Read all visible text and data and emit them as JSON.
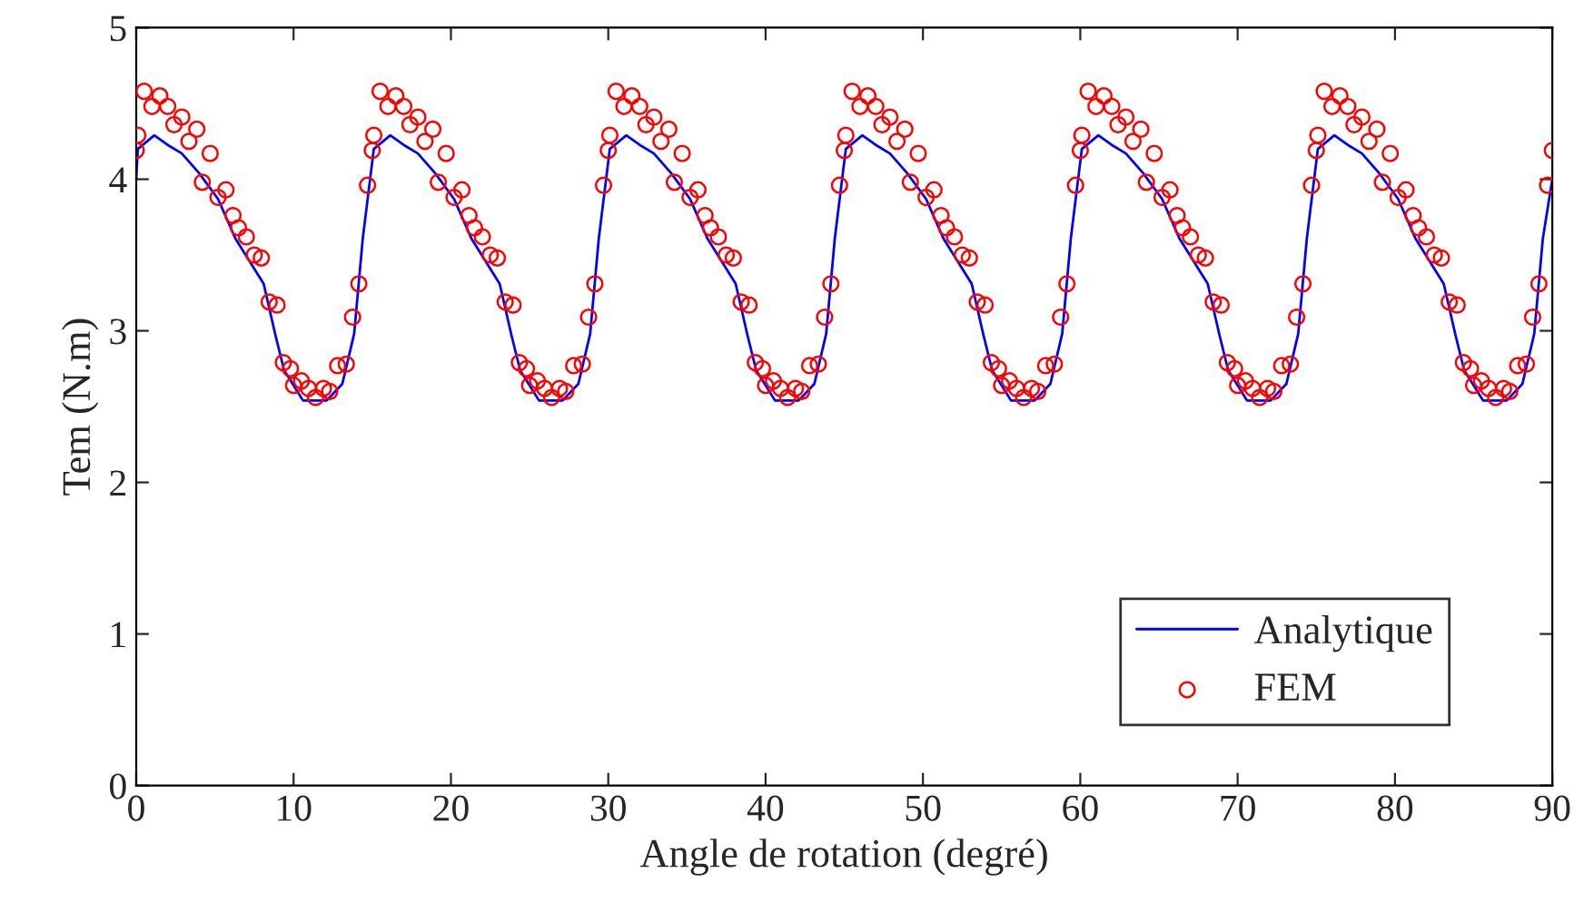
{
  "chart_data": {
    "type": "line",
    "xlabel": "Angle de rotation (degré)",
    "ylabel": "Tem (N.m)",
    "xlim": [
      0,
      90
    ],
    "xticks": [
      0,
      10,
      20,
      30,
      40,
      50,
      60,
      70,
      80,
      90
    ],
    "ylim": [
      0,
      5
    ],
    "yticks": [
      0,
      1,
      2,
      3,
      4,
      5
    ],
    "grid": false,
    "legend": "bottom right",
    "series": [
      {
        "name": "Analytique",
        "color": "#0000ff",
        "marker": "none",
        "line_style": "solid",
        "x": [
          0,
          0.1,
          1.15,
          2.1,
          2.9,
          4.0,
          5.2,
          6.3,
          8.1,
          8.85,
          9.4,
          10.6,
          12.1,
          13.1,
          13.85,
          14.4,
          15.1,
          16.15,
          17.1,
          17.9,
          19.0,
          20.2,
          21.3,
          23.1,
          23.85,
          24.4,
          25.6,
          27.1,
          28.1,
          28.85,
          29.4,
          30.1,
          31.15,
          32.1,
          32.9,
          34.0,
          35.2,
          36.3,
          38.1,
          38.85,
          39.4,
          40.6,
          42.1,
          43.1,
          43.85,
          44.4,
          45.1,
          46.15,
          47.1,
          47.9,
          49.0,
          50.2,
          51.3,
          53.1,
          53.85,
          54.4,
          55.6,
          57.1,
          58.1,
          58.85,
          59.4,
          60.1,
          61.15,
          62.1,
          62.9,
          64.0,
          65.2,
          66.3,
          68.1,
          68.85,
          69.4,
          70.6,
          72.1,
          73.1,
          73.85,
          74.4,
          75.1,
          76.15,
          77.1,
          77.9,
          79.0,
          80.2,
          81.3,
          83.1,
          83.85,
          84.4,
          85.6,
          87.1,
          88.1,
          88.85,
          89.4,
          90
        ],
        "values": [
          4.0,
          4.2,
          4.29,
          4.22,
          4.17,
          4.04,
          3.87,
          3.61,
          3.31,
          2.97,
          2.74,
          2.54,
          2.54,
          2.65,
          2.98,
          3.61,
          4.2,
          4.29,
          4.22,
          4.17,
          4.04,
          3.87,
          3.61,
          3.31,
          2.97,
          2.74,
          2.54,
          2.54,
          2.65,
          2.98,
          3.61,
          4.2,
          4.29,
          4.22,
          4.17,
          4.04,
          3.87,
          3.61,
          3.31,
          2.97,
          2.74,
          2.54,
          2.54,
          2.65,
          2.98,
          3.61,
          4.2,
          4.29,
          4.22,
          4.17,
          4.04,
          3.87,
          3.61,
          3.31,
          2.97,
          2.74,
          2.54,
          2.54,
          2.65,
          2.98,
          3.61,
          4.2,
          4.29,
          4.22,
          4.17,
          4.04,
          3.87,
          3.61,
          3.31,
          2.97,
          2.74,
          2.54,
          2.54,
          2.65,
          2.98,
          3.61,
          4.2,
          4.29,
          4.22,
          4.17,
          4.04,
          3.87,
          3.61,
          3.31,
          2.97,
          2.74,
          2.54,
          2.54,
          2.65,
          2.98,
          3.61,
          4.0
        ]
      },
      {
        "name": "FEM",
        "type": "scatter",
        "color": "#ff0000",
        "marker": "circle",
        "x": [
          0,
          0.1,
          0.5,
          1.0,
          1.5,
          2.0,
          2.4,
          2.9,
          3.35,
          3.85,
          4.2,
          4.7,
          5.2,
          5.7,
          6.15,
          6.5,
          7.0,
          7.5,
          7.95,
          8.45,
          8.95,
          9.35,
          9.8,
          10.0,
          10.5,
          10.95,
          11.4,
          11.9,
          12.3,
          12.8,
          13.35,
          13.75,
          14.15,
          14.7,
          15,
          15.1,
          15.5,
          16,
          16.5,
          17,
          17.4,
          17.9,
          18.35,
          18.85,
          19.2,
          19.7,
          20.2,
          20.7,
          21.15,
          21.5,
          22,
          22.5,
          22.95,
          23.45,
          23.95,
          24.35,
          24.8,
          25,
          25.5,
          25.95,
          26.4,
          26.9,
          27.3,
          27.8,
          28.35,
          28.75,
          29.15,
          29.7,
          30,
          30.1,
          30.5,
          31,
          31.5,
          32,
          32.4,
          32.9,
          33.35,
          33.85,
          34.2,
          34.7,
          35.2,
          35.7,
          36.15,
          36.5,
          37,
          37.5,
          37.95,
          38.45,
          38.95,
          39.35,
          39.8,
          40,
          40.5,
          40.95,
          41.4,
          41.9,
          42.3,
          42.8,
          43.35,
          43.75,
          44.15,
          44.7,
          45,
          45.1,
          45.5,
          46,
          46.5,
          47,
          47.4,
          47.9,
          48.35,
          48.85,
          49.2,
          49.7,
          50.2,
          50.7,
          51.15,
          51.5,
          52,
          52.5,
          52.95,
          53.45,
          53.95,
          54.35,
          54.8,
          55,
          55.5,
          55.95,
          56.4,
          56.9,
          57.3,
          57.8,
          58.35,
          58.75,
          59.15,
          59.7,
          60,
          60.1,
          60.5,
          61,
          61.5,
          62,
          62.4,
          62.9,
          63.35,
          63.85,
          64.2,
          64.7,
          65.2,
          65.7,
          66.15,
          66.5,
          67,
          67.5,
          67.95,
          68.45,
          68.95,
          69.35,
          69.8,
          70,
          70.5,
          70.95,
          71.4,
          71.9,
          72.3,
          72.8,
          73.35,
          73.75,
          74.15,
          74.7,
          75,
          75.1,
          75.5,
          76,
          76.5,
          77,
          77.4,
          77.9,
          78.35,
          78.85,
          79.2,
          79.7,
          80.2,
          80.7,
          81.15,
          81.5,
          82,
          82.5,
          82.95,
          83.45,
          83.95,
          84.35,
          84.8,
          85,
          85.5,
          85.95,
          86.4,
          86.9,
          87.3,
          87.8,
          88.35,
          88.75,
          89.15,
          89.7,
          90
        ],
        "values": [
          4.19,
          4.29,
          4.58,
          4.48,
          4.55,
          4.48,
          4.36,
          4.41,
          4.25,
          4.33,
          3.98,
          4.17,
          3.88,
          3.93,
          3.76,
          3.68,
          3.62,
          3.5,
          3.48,
          3.19,
          3.17,
          2.79,
          2.75,
          2.64,
          2.67,
          2.62,
          2.56,
          2.62,
          2.6,
          2.77,
          2.78,
          3.09,
          3.31,
          3.96,
          4.19,
          4.29,
          4.58,
          4.48,
          4.55,
          4.48,
          4.36,
          4.41,
          4.25,
          4.33,
          3.98,
          4.17,
          3.88,
          3.93,
          3.76,
          3.68,
          3.62,
          3.5,
          3.48,
          3.19,
          3.17,
          2.79,
          2.75,
          2.64,
          2.67,
          2.62,
          2.56,
          2.62,
          2.6,
          2.77,
          2.78,
          3.09,
          3.31,
          3.96,
          4.19,
          4.29,
          4.58,
          4.48,
          4.55,
          4.48,
          4.36,
          4.41,
          4.25,
          4.33,
          3.98,
          4.17,
          3.88,
          3.93,
          3.76,
          3.68,
          3.62,
          3.5,
          3.48,
          3.19,
          3.17,
          2.79,
          2.75,
          2.64,
          2.67,
          2.62,
          2.56,
          2.62,
          2.6,
          2.77,
          2.78,
          3.09,
          3.31,
          3.96,
          4.19,
          4.29,
          4.58,
          4.48,
          4.55,
          4.48,
          4.36,
          4.41,
          4.25,
          4.33,
          3.98,
          4.17,
          3.88,
          3.93,
          3.76,
          3.68,
          3.62,
          3.5,
          3.48,
          3.19,
          3.17,
          2.79,
          2.75,
          2.64,
          2.67,
          2.62,
          2.56,
          2.62,
          2.6,
          2.77,
          2.78,
          3.09,
          3.31,
          3.96,
          4.19,
          4.29,
          4.58,
          4.48,
          4.55,
          4.48,
          4.36,
          4.41,
          4.25,
          4.33,
          3.98,
          4.17,
          3.88,
          3.93,
          3.76,
          3.68,
          3.62,
          3.5,
          3.48,
          3.19,
          3.17,
          2.79,
          2.75,
          2.64,
          2.67,
          2.62,
          2.56,
          2.62,
          2.6,
          2.77,
          2.78,
          3.09,
          3.31,
          3.96,
          4.19,
          4.29,
          4.58,
          4.48,
          4.55,
          4.48,
          4.36,
          4.41,
          4.25,
          4.33,
          3.98,
          4.17,
          3.88,
          3.93,
          3.76,
          3.68,
          3.62,
          3.5,
          3.48,
          3.19,
          3.17,
          2.79,
          2.75,
          2.64,
          2.67,
          2.62,
          2.56,
          2.62,
          2.6,
          2.77,
          2.78,
          3.09,
          3.31,
          3.96,
          4.19
        ]
      }
    ]
  }
}
